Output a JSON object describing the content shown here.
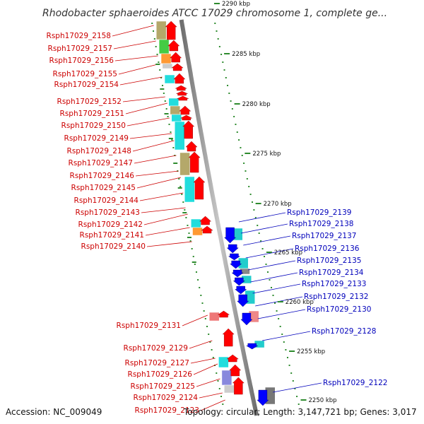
{
  "title": "Rhodobacter sphaeroides ATCC 17029 chromosome 1, complete ge...",
  "footer": {
    "accession": "Accession: NC_009049",
    "topology": "Topology: circular; Length: 3,147,721 bp; Genes: 3,017"
  },
  "colors": {
    "left_label": "#cc0000",
    "right_label": "#0000bb",
    "forward_gene": "#ff0000",
    "reverse_gene": "#0000ff",
    "backbone": "#8c8c8c",
    "scale_dots": "#2e8b2e"
  },
  "scale_labels": [
    {
      "text": "2290 kbp"
    },
    {
      "text": "2285 kbp"
    },
    {
      "text": "2280 kbp"
    },
    {
      "text": "2275 kbp"
    },
    {
      "text": "2270 kbp"
    },
    {
      "text": "2265 kbp"
    },
    {
      "text": "2260 kbp"
    },
    {
      "text": "2255 kbp"
    },
    {
      "text": "2250 kbp"
    }
  ],
  "left_labels": [
    "Rsph17029_2158",
    "Rsph17029_2157",
    "Rsph17029_2156",
    "Rsph17029_2155",
    "Rsph17029_2154",
    "Rsph17029_2152",
    "Rsph17029_2151",
    "Rsph17029_2150",
    "Rsph17029_2149",
    "Rsph17029_2148",
    "Rsph17029_2147",
    "Rsph17029_2146",
    "Rsph17029_2145",
    "Rsph17029_2144",
    "Rsph17029_2143",
    "Rsph17029_2142",
    "Rsph17029_2141",
    "Rsph17029_2140",
    "Rsph17029_2131",
    "Rsph17029_2129",
    "Rsph17029_2127",
    "Rsph17029_2126",
    "Rsph17029_2125",
    "Rsph17029_2124",
    "Rsph17029_2123"
  ],
  "right_labels": [
    "Rsph17029_2139",
    "Rsph17029_2138",
    "Rsph17029_2137",
    "Rsph17029_2136",
    "Rsph17029_2135",
    "Rsph17029_2134",
    "Rsph17029_2133",
    "Rsph17029_2132",
    "Rsph17029_2130",
    "Rsph17029_2128",
    "Rsph17029_2122"
  ]
}
